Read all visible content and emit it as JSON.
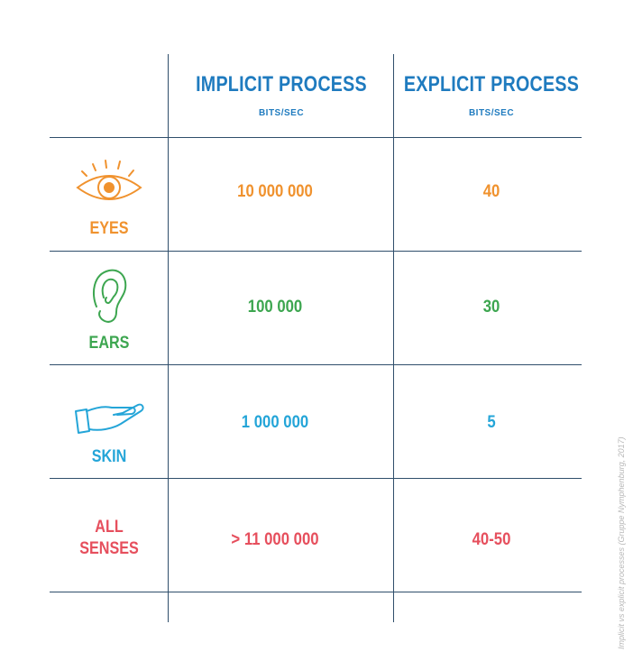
{
  "header": {
    "implicit": {
      "title": "IMPLICIT PROCESS",
      "unit": "BITS/SEC"
    },
    "explicit": {
      "title": "EXPLICIT PROCESS",
      "unit": "BITS/SEC"
    }
  },
  "rows": [
    {
      "label": "EYES",
      "icon": "eye-icon",
      "implicit": "10 000 000",
      "explicit": "40",
      "color": "#f0922e"
    },
    {
      "label": "EARS",
      "icon": "ear-icon",
      "implicit": "100 000",
      "explicit": "30",
      "color": "#3da650"
    },
    {
      "label": "SKIN",
      "icon": "hand-icon",
      "implicit": "1 000 000",
      "explicit": "5",
      "color": "#24a5d8"
    },
    {
      "label_line1": "ALL",
      "label_line2": "SENSES",
      "implicit": "> 11 000 000",
      "explicit": "40-50",
      "color": "#e64f5d"
    }
  ],
  "caption": "Implicit vs explicit processes (Gruppe Nymphenburg, 2017)",
  "colors": {
    "lines": "#2f4e6b",
    "header": "#1f7bbf"
  }
}
